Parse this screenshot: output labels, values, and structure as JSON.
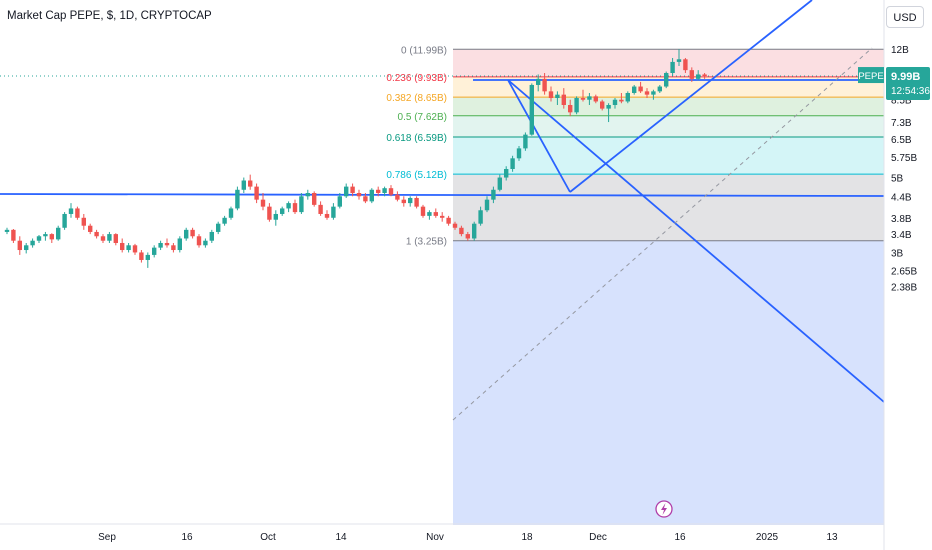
{
  "header": {
    "title": "Market Cap PEPE, $, 1D, CRYPTOCAP",
    "currency_button": "USD"
  },
  "price_tag": {
    "symbol": "PEPE",
    "value": "9.99B",
    "countdown": "12:54:36"
  },
  "colors": {
    "up": "#26a69a",
    "down": "#ef5350",
    "trendline": "#2962ff"
  },
  "chart_data": {
    "type": "candlestick",
    "symbol": "Market Cap PEPE",
    "interval": "1D",
    "currency": "USD",
    "last_value": 9.99,
    "y_unit": "billion USD",
    "scale": "log",
    "y_ticks": [
      "12B",
      "8.5B",
      "7.3B",
      "6.5B",
      "5.75B",
      "5B",
      "4.4B",
      "3.8B",
      "3.4B",
      "3B",
      "2.65B",
      "2.38B"
    ],
    "x_ticks": [
      "Sep",
      "16",
      "Oct",
      "14",
      "Nov",
      "18",
      "Dec",
      "16",
      "2025",
      "13"
    ],
    "fib_levels": [
      {
        "ratio": "0",
        "value": 11.99,
        "label": "0 (11.99B)",
        "color": "#787b86"
      },
      {
        "ratio": "0.236",
        "value": 9.93,
        "label": "0.236 (9.93B)",
        "color": "#f23645"
      },
      {
        "ratio": "0.382",
        "value": 8.65,
        "label": "0.382 (8.65B)",
        "color": "#f5a623"
      },
      {
        "ratio": "0.5",
        "value": 7.62,
        "label": "0.5 (7.62B)",
        "color": "#4caf50"
      },
      {
        "ratio": "0.618",
        "value": 6.59,
        "label": "0.618 (6.59B)",
        "color": "#089981"
      },
      {
        "ratio": "0.786",
        "value": 5.12,
        "label": "0.786 (5.12B)",
        "color": "#00bcd4"
      },
      {
        "ratio": "1",
        "value": 3.25,
        "label": "1 (3.25B)",
        "color": "#787b86"
      }
    ],
    "candles": [
      [
        3.45,
        3.55,
        3.4,
        3.5
      ],
      [
        3.5,
        3.52,
        3.2,
        3.25
      ],
      [
        3.25,
        3.35,
        2.95,
        3.05
      ],
      [
        3.05,
        3.2,
        2.98,
        3.15
      ],
      [
        3.15,
        3.3,
        3.1,
        3.25
      ],
      [
        3.25,
        3.38,
        3.2,
        3.35
      ],
      [
        3.35,
        3.45,
        3.25,
        3.4
      ],
      [
        3.4,
        3.42,
        3.2,
        3.28
      ],
      [
        3.28,
        3.6,
        3.25,
        3.55
      ],
      [
        3.55,
        3.95,
        3.5,
        3.9
      ],
      [
        3.9,
        4.2,
        3.8,
        4.05
      ],
      [
        4.05,
        4.1,
        3.75,
        3.8
      ],
      [
        3.8,
        3.9,
        3.5,
        3.6
      ],
      [
        3.6,
        3.65,
        3.4,
        3.45
      ],
      [
        3.45,
        3.5,
        3.3,
        3.35
      ],
      [
        3.35,
        3.4,
        3.2,
        3.25
      ],
      [
        3.25,
        3.45,
        3.2,
        3.4
      ],
      [
        3.4,
        3.42,
        3.15,
        3.2
      ],
      [
        3.2,
        3.3,
        3.0,
        3.05
      ],
      [
        3.05,
        3.2,
        3.0,
        3.15
      ],
      [
        3.15,
        3.18,
        2.95,
        3.0
      ],
      [
        3.0,
        3.05,
        2.8,
        2.85
      ],
      [
        2.85,
        3.0,
        2.7,
        2.95
      ],
      [
        2.95,
        3.15,
        2.9,
        3.1
      ],
      [
        3.1,
        3.25,
        3.05,
        3.2
      ],
      [
        3.2,
        3.3,
        3.1,
        3.15
      ],
      [
        3.15,
        3.2,
        3.0,
        3.05
      ],
      [
        3.05,
        3.35,
        3.0,
        3.3
      ],
      [
        3.3,
        3.55,
        3.25,
        3.5
      ],
      [
        3.5,
        3.55,
        3.3,
        3.35
      ],
      [
        3.35,
        3.4,
        3.1,
        3.15
      ],
      [
        3.15,
        3.3,
        3.1,
        3.25
      ],
      [
        3.25,
        3.5,
        3.2,
        3.45
      ],
      [
        3.45,
        3.7,
        3.4,
        3.65
      ],
      [
        3.65,
        3.85,
        3.6,
        3.8
      ],
      [
        3.8,
        4.1,
        3.75,
        4.05
      ],
      [
        4.05,
        4.7,
        4.0,
        4.6
      ],
      [
        4.6,
        5.0,
        4.5,
        4.9
      ],
      [
        4.9,
        5.1,
        4.6,
        4.7
      ],
      [
        4.7,
        4.8,
        4.2,
        4.3
      ],
      [
        4.3,
        4.5,
        4.0,
        4.1
      ],
      [
        4.1,
        4.2,
        3.7,
        3.75
      ],
      [
        3.75,
        4.0,
        3.6,
        3.9
      ],
      [
        3.9,
        4.1,
        3.85,
        4.05
      ],
      [
        4.05,
        4.25,
        3.95,
        4.2
      ],
      [
        4.2,
        4.3,
        3.9,
        3.95
      ],
      [
        3.95,
        4.5,
        3.9,
        4.4
      ],
      [
        4.4,
        4.6,
        4.3,
        4.5
      ],
      [
        4.5,
        4.55,
        4.1,
        4.15
      ],
      [
        4.15,
        4.25,
        3.85,
        3.9
      ],
      [
        3.9,
        4.0,
        3.75,
        3.8
      ],
      [
        3.8,
        4.2,
        3.75,
        4.1
      ],
      [
        4.1,
        4.5,
        4.05,
        4.4
      ],
      [
        4.4,
        4.8,
        4.35,
        4.7
      ],
      [
        4.7,
        4.8,
        4.4,
        4.5
      ],
      [
        4.5,
        4.6,
        4.3,
        4.4
      ],
      [
        4.4,
        4.5,
        4.2,
        4.25
      ],
      [
        4.25,
        4.65,
        4.2,
        4.6
      ],
      [
        4.6,
        4.7,
        4.4,
        4.5
      ],
      [
        4.5,
        4.7,
        4.4,
        4.65
      ],
      [
        4.65,
        4.75,
        4.4,
        4.45
      ],
      [
        4.45,
        4.55,
        4.25,
        4.3
      ],
      [
        4.3,
        4.4,
        4.1,
        4.2
      ],
      [
        4.2,
        4.4,
        4.1,
        4.35
      ],
      [
        4.35,
        4.4,
        4.05,
        4.1
      ],
      [
        4.1,
        4.15,
        3.8,
        3.85
      ],
      [
        3.85,
        4.0,
        3.75,
        3.95
      ],
      [
        3.95,
        4.05,
        3.8,
        3.85
      ],
      [
        3.85,
        3.95,
        3.7,
        3.8
      ],
      [
        3.8,
        3.85,
        3.6,
        3.65
      ],
      [
        3.65,
        3.7,
        3.5,
        3.55
      ],
      [
        3.55,
        3.6,
        3.35,
        3.4
      ],
      [
        3.4,
        3.45,
        3.25,
        3.3
      ],
      [
        3.3,
        3.7,
        3.25,
        3.65
      ],
      [
        3.65,
        4.1,
        3.6,
        4.0
      ],
      [
        4.0,
        4.4,
        3.95,
        4.3
      ],
      [
        4.3,
        4.7,
        4.2,
        4.6
      ],
      [
        4.6,
        5.1,
        4.55,
        5.0
      ],
      [
        5.0,
        5.4,
        4.9,
        5.3
      ],
      [
        5.3,
        5.8,
        5.2,
        5.7
      ],
      [
        5.7,
        6.2,
        5.6,
        6.1
      ],
      [
        6.1,
        6.8,
        6.0,
        6.7
      ],
      [
        6.7,
        9.5,
        6.65,
        9.4
      ],
      [
        9.4,
        10.1,
        9.0,
        9.8
      ],
      [
        9.8,
        10.2,
        8.8,
        9.0
      ],
      [
        9.0,
        9.3,
        8.4,
        8.6
      ],
      [
        8.6,
        9.0,
        8.2,
        8.8
      ],
      [
        8.8,
        9.2,
        8.0,
        8.2
      ],
      [
        8.2,
        8.5,
        7.6,
        7.8
      ],
      [
        7.8,
        8.7,
        7.7,
        8.6
      ],
      [
        8.6,
        9.1,
        8.4,
        8.5
      ],
      [
        8.5,
        8.9,
        8.2,
        8.7
      ],
      [
        8.7,
        8.8,
        8.3,
        8.4
      ],
      [
        8.4,
        8.5,
        7.9,
        8.0
      ],
      [
        8.0,
        8.3,
        7.3,
        8.2
      ],
      [
        8.2,
        8.6,
        8.0,
        8.5
      ],
      [
        8.5,
        8.9,
        8.3,
        8.4
      ],
      [
        8.4,
        9.0,
        8.3,
        8.9
      ],
      [
        8.9,
        9.4,
        8.8,
        9.3
      ],
      [
        9.3,
        9.6,
        8.9,
        9.0
      ],
      [
        9.0,
        9.2,
        8.6,
        8.8
      ],
      [
        8.8,
        9.1,
        8.5,
        9.0
      ],
      [
        9.0,
        9.4,
        8.9,
        9.3
      ],
      [
        9.3,
        10.3,
        9.2,
        10.2
      ],
      [
        10.2,
        11.3,
        10.0,
        11.0
      ],
      [
        11.0,
        11.99,
        10.7,
        11.2
      ],
      [
        11.2,
        11.3,
        10.2,
        10.4
      ],
      [
        10.4,
        10.6,
        9.6,
        9.8
      ],
      [
        9.8,
        10.4,
        9.7,
        10.1
      ],
      [
        10.1,
        10.2,
        9.8,
        9.99
      ]
    ]
  }
}
